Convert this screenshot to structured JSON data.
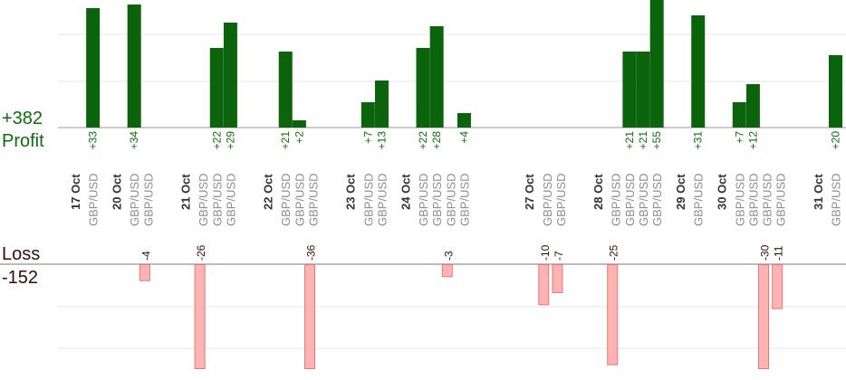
{
  "summary": {
    "profit_total": "+382",
    "profit_label": "Profit",
    "loss_label": "Loss",
    "loss_total": "-152"
  },
  "colors": {
    "profit_fill": "#0b640b",
    "profit_text": "#0b6e0b",
    "loss_fill": "#ffb3b3",
    "loss_stroke": "#e07a7a",
    "loss_text": "#3a0a0a",
    "pair_text": "#8c8c8c",
    "day_text": "#333333",
    "grid": "#e6e6e6",
    "axis": "#999999"
  },
  "chart_data": {
    "type": "bar",
    "ylim_profit": [
      0,
      35
    ],
    "ylim_loss": [
      -28,
      0
    ],
    "grid": true,
    "days": [
      "17 Oct",
      "20 Oct",
      "21 Oct",
      "22 Oct",
      "23 Oct",
      "24 Oct",
      "27 Oct",
      "28 Oct",
      "29 Oct",
      "30 Oct",
      "31 Oct"
    ],
    "trades": [
      {
        "day": "17 Oct",
        "pair": "GBP/USD",
        "value": 33,
        "label": "+33"
      },
      {
        "day": "20 Oct",
        "pair": "GBP/USD",
        "value": 34,
        "label": "+34"
      },
      {
        "day": "20 Oct",
        "pair": "GBP/USD",
        "value": -4,
        "label": "-4"
      },
      {
        "day": "21 Oct",
        "pair": "GBP/USD",
        "value": -26,
        "label": "-26"
      },
      {
        "day": "21 Oct",
        "pair": "GBP/USD",
        "value": 22,
        "label": "+22"
      },
      {
        "day": "21 Oct",
        "pair": "GBP/USD",
        "value": 29,
        "label": "+29"
      },
      {
        "day": "22 Oct",
        "pair": "GBP/USD",
        "value": 21,
        "label": "+21"
      },
      {
        "day": "22 Oct",
        "pair": "GBP/USD",
        "value": 2,
        "label": "+2"
      },
      {
        "day": "22 Oct",
        "pair": "GBP/USD",
        "value": -36,
        "label": "-36"
      },
      {
        "day": "23 Oct",
        "pair": "GBP/USD",
        "value": 7,
        "label": "+7"
      },
      {
        "day": "23 Oct",
        "pair": "GBP/USD",
        "value": 13,
        "label": "+13"
      },
      {
        "day": "24 Oct",
        "pair": "GBP/USD",
        "value": 22,
        "label": "+22"
      },
      {
        "day": "24 Oct",
        "pair": "GBP/USD",
        "value": 28,
        "label": "+28"
      },
      {
        "day": "24 Oct",
        "pair": "GBP/USD",
        "value": -3,
        "label": "-3"
      },
      {
        "day": "24 Oct",
        "pair": "GBP/USD",
        "value": 4,
        "label": "+4"
      },
      {
        "day": "27 Oct",
        "pair": "GBP/USD",
        "value": -10,
        "label": "-10"
      },
      {
        "day": "27 Oct",
        "pair": "GBP/USD",
        "value": -7,
        "label": "-7"
      },
      {
        "day": "28 Oct",
        "pair": "GBP/USD",
        "value": -25,
        "label": "-25"
      },
      {
        "day": "28 Oct",
        "pair": "GBP/USD",
        "value": 21,
        "label": "+21"
      },
      {
        "day": "28 Oct",
        "pair": "GBP/USD",
        "value": 21,
        "label": "+21"
      },
      {
        "day": "28 Oct",
        "pair": "GBP/USD",
        "value": 55,
        "label": "+55"
      },
      {
        "day": "29 Oct",
        "pair": "GBP/USD",
        "value": 31,
        "label": "+31"
      },
      {
        "day": "30 Oct",
        "pair": "GBP/USD",
        "value": 7,
        "label": "+7"
      },
      {
        "day": "30 Oct",
        "pair": "GBP/USD",
        "value": 12,
        "label": "+12"
      },
      {
        "day": "30 Oct",
        "pair": "GBP/USD",
        "value": -30,
        "label": "-30"
      },
      {
        "day": "30 Oct",
        "pair": "GBP/USD",
        "value": -11,
        "label": "-11"
      },
      {
        "day": "31 Oct",
        "pair": "GBP/USD",
        "value": 20,
        "label": "+20"
      }
    ]
  }
}
